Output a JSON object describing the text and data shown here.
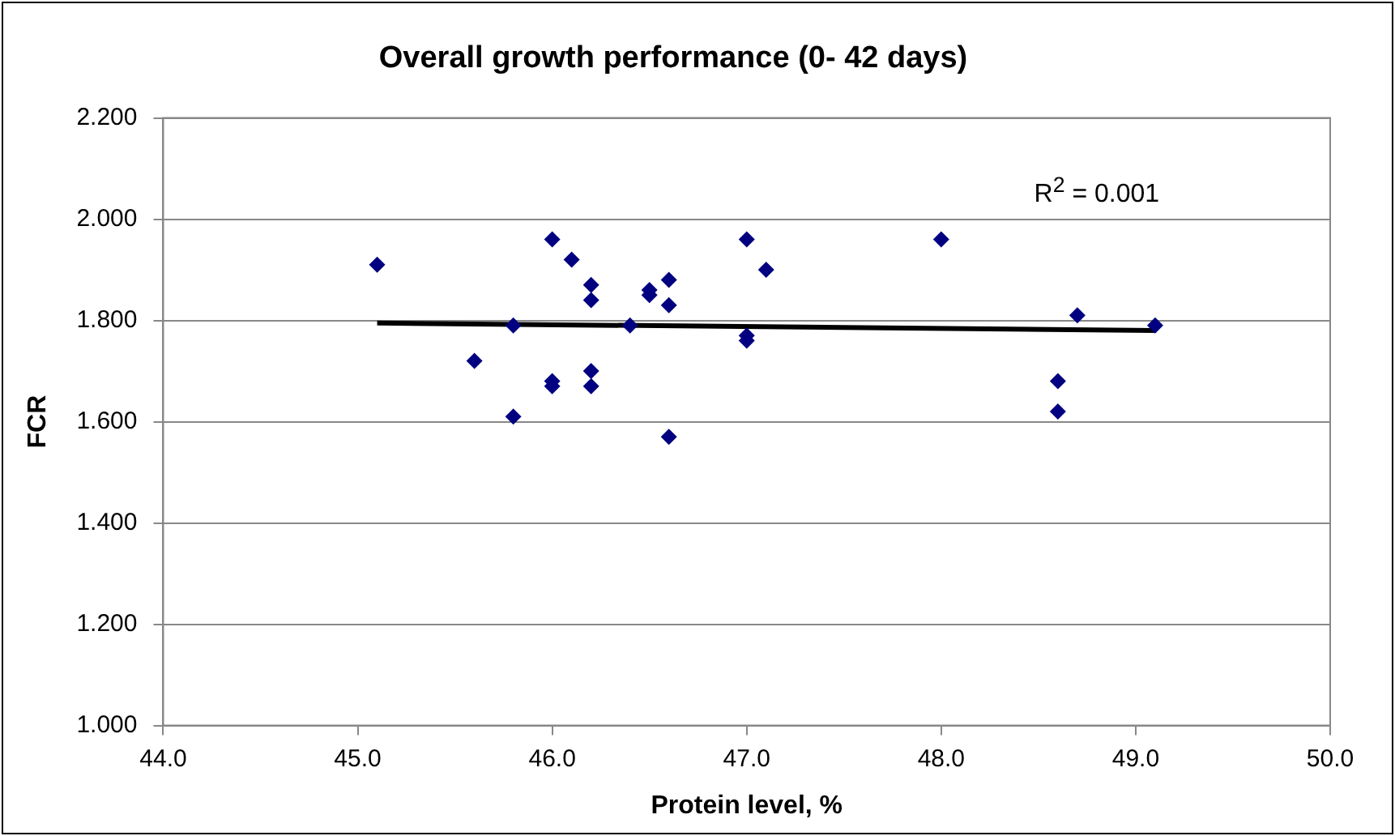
{
  "chart_data": {
    "type": "scatter",
    "title": "Overall growth performance (0- 42 days)",
    "xlabel": "Protein level, %",
    "ylabel": "FCR",
    "xlim": [
      44,
      50
    ],
    "xticks": [
      {
        "value": 44,
        "label": "44.0"
      },
      {
        "value": 45,
        "label": "45.0"
      },
      {
        "value": 46,
        "label": "46.0"
      },
      {
        "value": 47,
        "label": "47.0"
      },
      {
        "value": 48,
        "label": "48.0"
      },
      {
        "value": 49,
        "label": "49.0"
      },
      {
        "value": 50,
        "label": "50.0"
      }
    ],
    "ylim": [
      1,
      2.2
    ],
    "yticks": [
      {
        "value": 1,
        "label": "1.000"
      },
      {
        "value": 1.2,
        "label": "1.200"
      },
      {
        "value": 1.4,
        "label": "1.400"
      },
      {
        "value": 1.6,
        "label": "1.600"
      },
      {
        "value": 1.8,
        "label": "1.800"
      },
      {
        "value": 2,
        "label": "2.000"
      },
      {
        "value": 2.2,
        "label": "2.200"
      }
    ],
    "grid": "y",
    "series": [
      {
        "marker": "diamond",
        "color": "#000080",
        "x": [
          45.1,
          45.6,
          45.8,
          45.8,
          46.0,
          46.0,
          46.0,
          46.1,
          46.2,
          46.2,
          46.2,
          46.2,
          46.4,
          46.5,
          46.5,
          46.6,
          46.6,
          46.6,
          47.0,
          47.0,
          47.0,
          47.1,
          48.0,
          48.6,
          48.6,
          48.7,
          49.1
        ],
        "values": [
          1.91,
          1.72,
          1.79,
          1.61,
          1.96,
          1.68,
          1.67,
          1.92,
          1.87,
          1.84,
          1.7,
          1.67,
          1.79,
          1.86,
          1.85,
          1.88,
          1.83,
          1.57,
          1.96,
          1.77,
          1.76,
          1.9,
          1.96,
          1.68,
          1.62,
          1.81,
          1.79
        ]
      },
      {
        "type": "line",
        "color": "#000000",
        "x": [
          45.1,
          49.1
        ],
        "values": [
          1.795,
          1.78
        ]
      }
    ],
    "annotations": [
      "R$^{2}$ = 0.001"
    ]
  }
}
